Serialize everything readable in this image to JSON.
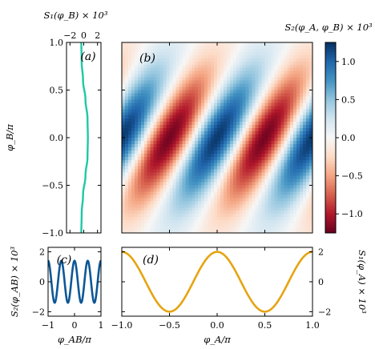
{
  "chart_data": [
    {
      "id": "a",
      "type": "line",
      "panel_label": "(a)",
      "xlabel": "S₁(φ_B) × 10³",
      "ylabel": "",
      "xlim": [
        -2.5,
        2.5
      ],
      "ylim": [
        -1.0,
        1.0
      ],
      "xticks": [
        "−2",
        "0",
        "2"
      ],
      "yticks": [
        "−1.0",
        "−0.5",
        "0.0",
        "0.5",
        "1.0"
      ],
      "color": "#1ec8a5",
      "series": [
        {
          "x": [
            -0.35,
            -0.3,
            -0.1,
            0.25,
            0.55,
            0.6,
            0.55,
            0.25,
            -0.1,
            -0.3,
            -0.35
          ],
          "y": [
            -1.0,
            -0.8,
            -0.6,
            -0.4,
            -0.2,
            0.0,
            0.2,
            0.4,
            0.6,
            0.8,
            1.0
          ]
        }
      ]
    },
    {
      "id": "b",
      "type": "heatmap",
      "panel_label": "(b)",
      "xlim": [
        -1.0,
        1.0
      ],
      "ylim": [
        -1.0,
        1.0
      ],
      "ylabel": "φ_B/π",
      "yticks": [
        "−1.0",
        "−0.5",
        "0.0",
        "0.5",
        "1.0"
      ],
      "colorbar_label": "S₂(φ_A, φ_B) × 10³",
      "colorbar_ticks": [
        "−1.0",
        "−0.5",
        "0.0",
        "0.5",
        "1.0"
      ],
      "colorbar_range": [
        -1.25,
        1.25
      ],
      "colormap": [
        "#67001f",
        "#b2182b",
        "#d6604d",
        "#f4a582",
        "#fddbc7",
        "#f7f7f7",
        "#d1e5f0",
        "#92c5de",
        "#4393c3",
        "#2166ac",
        "#053061"
      ],
      "peak": 1.2,
      "stripe_spacing": 1.0,
      "stripe_slope": 2.0,
      "envelope_width": 0.5
    },
    {
      "id": "c",
      "type": "line",
      "panel_label": "(c)",
      "xlabel": "φ_AB/π",
      "ylabel": "S₂(φ_AB) × 10³",
      "xlim": [
        -1.0,
        1.0
      ],
      "ylim": [
        -2.3,
        2.3
      ],
      "xticks": [
        "−1",
        "0",
        "1"
      ],
      "yticks": [
        "−2",
        "0",
        "2"
      ],
      "color": "#0d5796",
      "series": [
        {
          "x": [
            -1.0,
            -0.875,
            -0.75,
            -0.625,
            -0.5,
            -0.375,
            -0.25,
            -0.125,
            0.0,
            0.125,
            0.25,
            0.375,
            0.5,
            0.625,
            0.75,
            0.875,
            1.0
          ],
          "y": [
            1.4,
            1.0,
            0.0,
            -1.0,
            -1.4,
            -1.0,
            0.0,
            1.0,
            1.4,
            1.0,
            0.0,
            -1.0,
            -1.4,
            -1.0,
            0.0,
            1.0,
            1.4
          ]
        }
      ]
    },
    {
      "id": "d",
      "type": "line",
      "panel_label": "(d)",
      "xlabel": "φ_A/π",
      "ylabel": "S₁(φ_A) × 10³",
      "xlim": [
        -1.0,
        1.0
      ],
      "ylim": [
        -2.3,
        2.3
      ],
      "xticks": [
        "−1.0",
        "−0.5",
        "0.0",
        "0.5",
        "1.0"
      ],
      "yticks": [
        "−2",
        "0",
        "2"
      ],
      "color": "#e5a411",
      "series": [
        {
          "x": [
            -1.0,
            -0.875,
            -0.75,
            -0.625,
            -0.5,
            -0.375,
            -0.25,
            -0.125,
            0.0,
            0.125,
            0.25,
            0.375,
            0.5,
            0.625,
            0.75,
            0.875,
            1.0
          ],
          "y": [
            2.0,
            1.41,
            0.0,
            -1.41,
            -2.0,
            -1.41,
            0.0,
            1.41,
            2.0,
            1.41,
            0.0,
            -1.41,
            -2.0,
            -1.41,
            0.0,
            1.41,
            2.0
          ]
        }
      ]
    }
  ]
}
